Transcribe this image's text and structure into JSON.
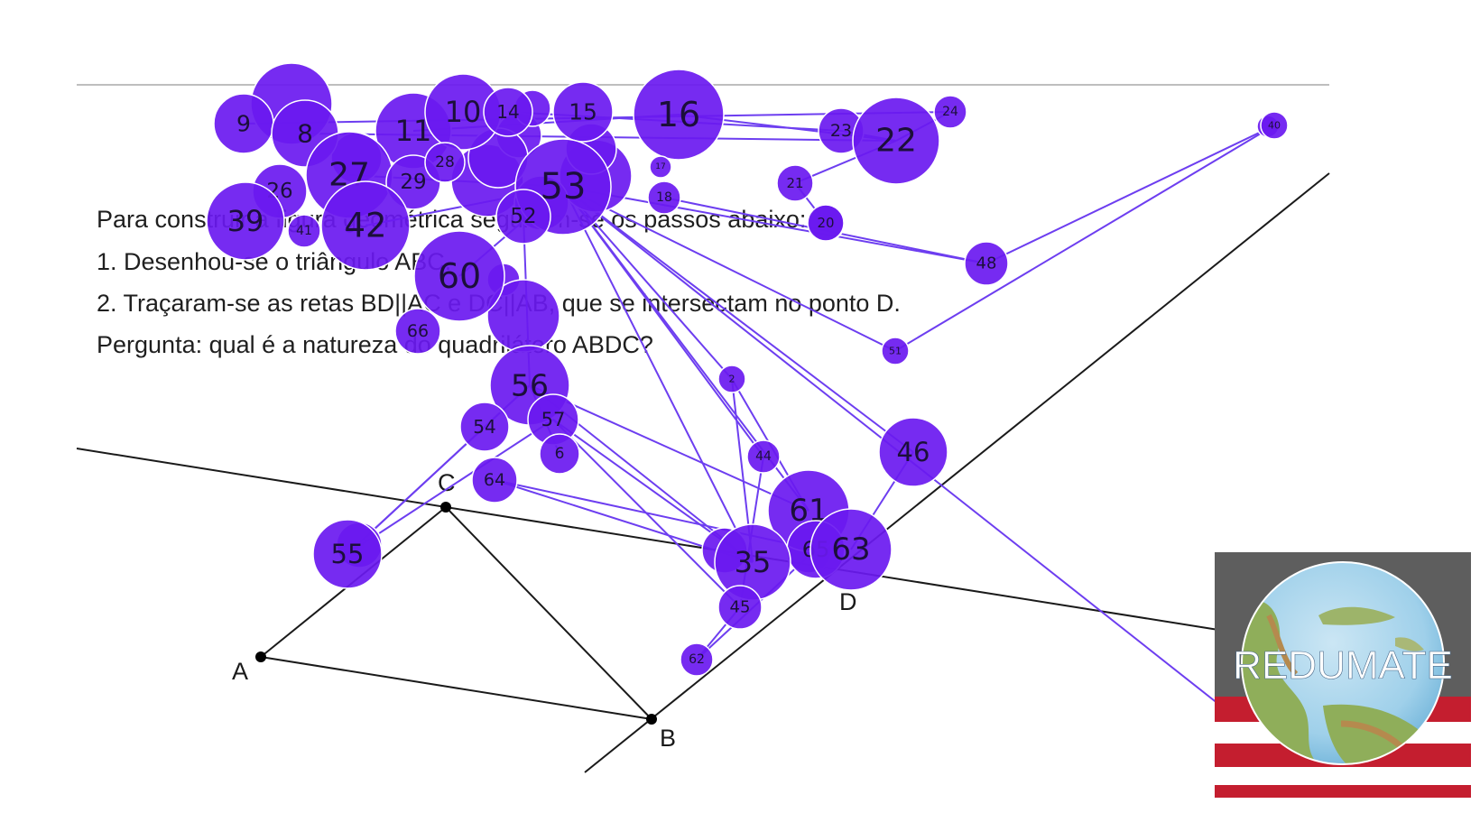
{
  "prompt_lines": {
    "line1": "Para construir a figura geométrica seguiram-se os passos abaixo:",
    "line2": "1. Desenhou-se o triângulo ABC.",
    "line3": "2. Traçaram-se as retas BD||AC e DC||AB, que se intersectam no ponto D.",
    "line4": "Pergunta: qual é a natureza do quadrilátero ABDC?"
  },
  "points": {
    "A": "A",
    "B": "B",
    "C": "C",
    "D": "D"
  },
  "overlay_nodes": [
    {
      "id": "9"
    },
    {
      "id": "8"
    },
    {
      "id": "11"
    },
    {
      "id": "10"
    },
    {
      "id": "14"
    },
    {
      "id": "15"
    },
    {
      "id": "16"
    },
    {
      "id": "23"
    },
    {
      "id": "22"
    },
    {
      "id": "24"
    },
    {
      "id": "26"
    },
    {
      "id": "27"
    },
    {
      "id": "29"
    },
    {
      "id": "28"
    },
    {
      "id": "53"
    },
    {
      "id": "17"
    },
    {
      "id": "18"
    },
    {
      "id": "21"
    },
    {
      "id": "20"
    },
    {
      "id": "39"
    },
    {
      "id": "41"
    },
    {
      "id": "42"
    },
    {
      "id": "52"
    },
    {
      "id": "60"
    },
    {
      "id": "48"
    },
    {
      "id": "66"
    },
    {
      "id": "51"
    },
    {
      "id": "2"
    },
    {
      "id": "56"
    },
    {
      "id": "54"
    },
    {
      "id": "57"
    },
    {
      "id": "6"
    },
    {
      "id": "44"
    },
    {
      "id": "46"
    },
    {
      "id": "64"
    },
    {
      "id": "61"
    },
    {
      "id": "65"
    },
    {
      "id": "63"
    },
    {
      "id": "55"
    },
    {
      "id": "35"
    },
    {
      "id": "45"
    },
    {
      "id": "62"
    },
    {
      "id": "40"
    }
  ],
  "logo": {
    "text": "REDUMATE"
  },
  "colors": {
    "node_fill": "#6a19f0",
    "node_stroke": "#ffffff",
    "edge": "#6d3ef0",
    "construction_line": "#1a1a1a",
    "logo_gray": "#5e5e5e",
    "logo_red": "#c41e2f"
  }
}
